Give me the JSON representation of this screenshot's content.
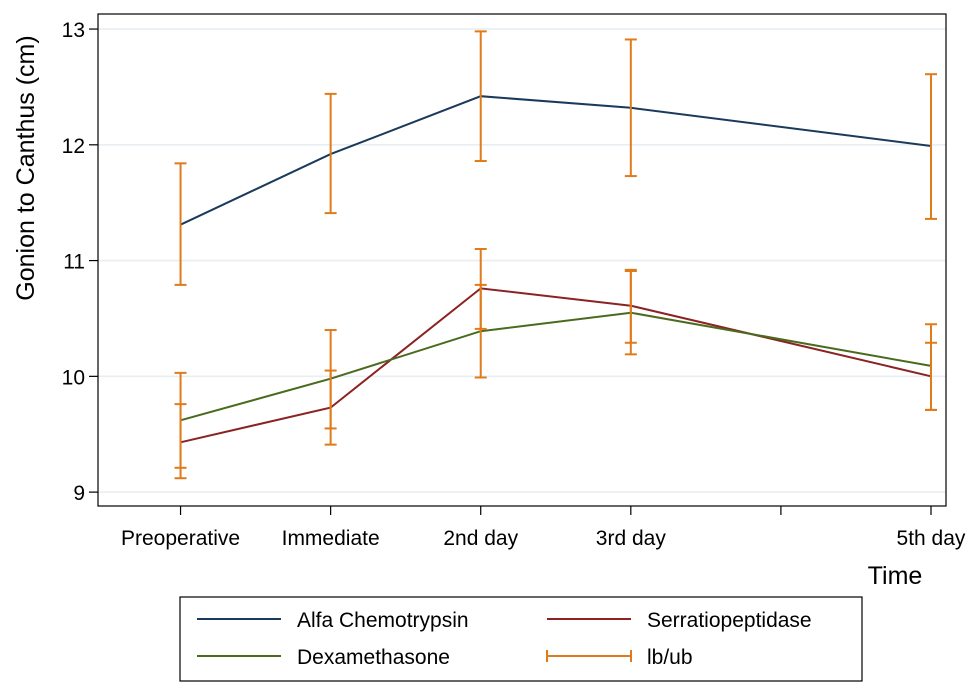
{
  "chart_data": {
    "type": "line",
    "title": "",
    "xlabel": "Time",
    "ylabel": "Gonion to Canthus (cm)",
    "x_positions": [
      0,
      1,
      2,
      3,
      4,
      5
    ],
    "x_tick_labels": [
      "Preoperative",
      "Immediate",
      "2nd day",
      "3rd day",
      "",
      "5th day"
    ],
    "xlim": [
      -0.55,
      5.1
    ],
    "ylim": [
      8.88,
      13.13
    ],
    "y_ticks": [
      9,
      10,
      11,
      12,
      13
    ],
    "grid": true,
    "series": [
      {
        "name": "Alfa Chemotrypsin",
        "color": "#1a3a5c",
        "x": [
          0,
          1,
          2,
          3,
          5
        ],
        "values": [
          11.31,
          11.92,
          12.42,
          12.32,
          11.99
        ],
        "lb": [
          10.79,
          11.41,
          11.86,
          11.73,
          11.36
        ],
        "ub": [
          11.84,
          12.44,
          12.98,
          12.91,
          12.61
        ]
      },
      {
        "name": "Serratiopeptidase",
        "color": "#8b2323",
        "x": [
          0,
          1,
          2,
          3,
          5
        ],
        "values": [
          9.43,
          9.73,
          10.76,
          10.61,
          10.0
        ],
        "lb": [
          9.12,
          9.41,
          10.41,
          10.29,
          9.71
        ],
        "ub": [
          9.76,
          10.05,
          11.1,
          10.92,
          10.29
        ]
      },
      {
        "name": "Dexamethasone",
        "color": "#4a6b1e",
        "x": [
          0,
          1,
          2,
          3,
          5
        ],
        "values": [
          9.62,
          9.98,
          10.39,
          10.55,
          10.09
        ],
        "lb": [
          9.21,
          9.55,
          9.99,
          10.19,
          9.71
        ],
        "ub": [
          10.03,
          10.4,
          10.79,
          10.91,
          10.45
        ]
      }
    ],
    "errorbar_style": {
      "name": "lb/ub",
      "color": "#e07b1a"
    },
    "legend": {
      "placement": "bottom",
      "entries": [
        "Alfa Chemotrypsin",
        "Serratiopeptidase",
        "Dexamethasone",
        "lb/ub"
      ]
    }
  }
}
